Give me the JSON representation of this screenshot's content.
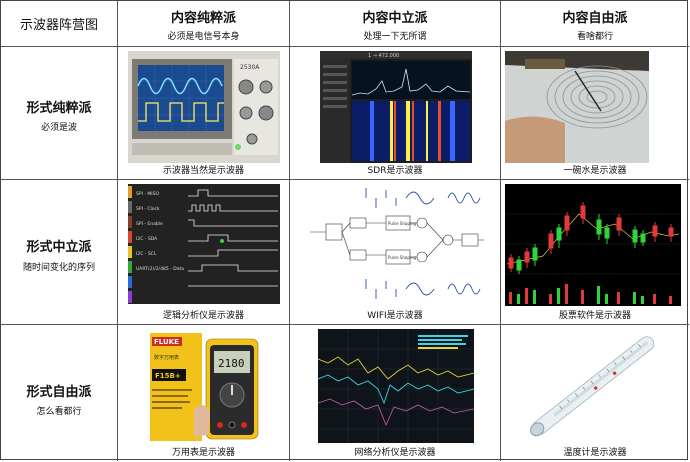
{
  "corner_label": "示波器阵营图",
  "columns": [
    {
      "title": "内容纯粹派",
      "sub": "必须是电信号本身"
    },
    {
      "title": "内容中立派",
      "sub": "处理一下无所谓"
    },
    {
      "title": "内容自由派",
      "sub": "看啥都行"
    }
  ],
  "rows": [
    {
      "title": "形式纯粹派",
      "sub": "必须是波"
    },
    {
      "title": "形式中立派",
      "sub": "随时间变化的序列"
    },
    {
      "title": "形式自由派",
      "sub": "怎么看都行"
    }
  ],
  "captions": [
    [
      "示波器当然是示波器",
      "SDR是示波器",
      "一碗水是示波器"
    ],
    [
      "逻辑分析仪是示波器",
      "WIFI是示波器",
      "股票软件是示波器"
    ],
    [
      "万用表是示波器",
      "网络分析仪是示波器",
      "温度计是示波器"
    ]
  ],
  "image_text": {
    "sdr_freq": "1 → 472.000",
    "logic_channels": [
      "SPI - MISO",
      "SPI - Clock",
      "SPI - Enable",
      "I2C - SDA",
      "I2C - SCL",
      "UART(2)/2/485 - Data"
    ],
    "fluke_brand": "FLUKE",
    "fluke_model": "F15B+",
    "fluke_cn": "数字万用表",
    "meter_reading": "2180"
  }
}
